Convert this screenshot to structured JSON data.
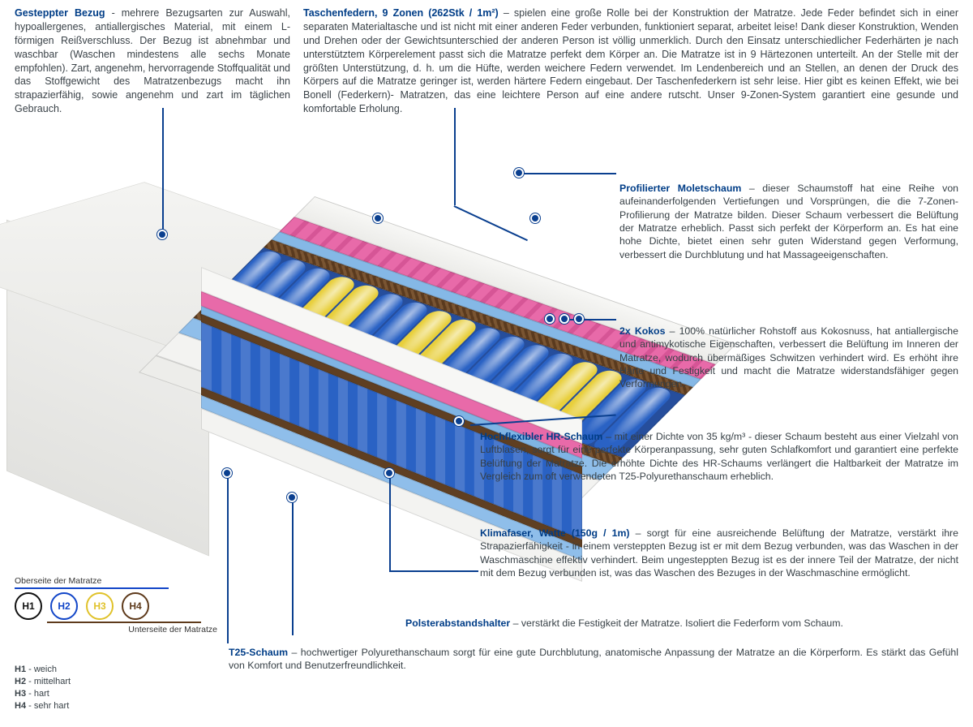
{
  "colors": {
    "heading": "#003d87",
    "text": "#3a4248",
    "dot": "#0a3f8f",
    "spring_blue": "#2a62c4",
    "spring_yellow": "#e8cf3c",
    "foam_pink": "#e86aa9",
    "foam_blue": "#8fbeea",
    "coco": "#5e3a1b",
    "cover": "#f3f3f1"
  },
  "top_left": {
    "title": "Gesteppter Bezug",
    "sep": " - ",
    "body": "mehrere Bezugsarten zur Auswahl, hypoallergenes, antiallergisches Material, mit einem L-förmigen Reißverschluss. Der Bezug ist abnehmbar und waschbar (Waschen mindestens alle sechs Monate empfohlen). Zart, angenehm, hervorragende Stoffqualität und das Stoffgewicht des Matratzenbezugs macht ihn strapazierfähig, sowie angenehm und zart im täglichen Gebrauch."
  },
  "top_right": {
    "title": "Taschenfedern, 9 Zonen (262Stk / 1m²)",
    "sep": " – ",
    "body": "spielen eine große Rolle bei der Konstruktion der Matratze. Jede Feder befindet sich in einer separaten Materialtasche und ist nicht mit einer anderen Feder verbunden, funktioniert separat, arbeitet leise! Dank dieser Konstruktion, Wenden und Drehen oder der Gewichtsunterschied der anderen Person ist völlig unmerklich. Durch den Einsatz unterschiedlicher Federhärten je nach unterstütztem Körperelement passt sich die Matratze perfekt dem Körper an. Die Matratze ist in 9 Härtezonen unterteilt. An der Stelle mit der größten Unterstützung, d. h. um die Hüfte, werden weichere Federn verwendet. Im Lendenbereich und an Stellen, an denen der Druck des Körpers auf die Matratze geringer ist, werden härtere Federn eingebaut. Der Taschenfederkern ist sehr leise. Hier gibt es keinen Effekt, wie bei Bonell (Federkern)- Matratzen, das eine leichtere Person auf eine andere rutscht. Unser 9-Zonen-System garantiert eine gesunde und komfortable Erholung."
  },
  "callouts": {
    "molet": {
      "title": "Profilierter Moletschaum",
      "sep": " – ",
      "body": "dieser Schaumstoff hat eine Reihe von aufeinanderfolgenden Vertiefungen und Vorsprüngen, die die 7-Zonen-Profilierung der Matratze bilden. Dieser Schaum verbessert die Belüftung der Matratze erheblich. Passt sich perfekt der Körperform an. Es hat eine hohe Dichte, bietet einen sehr guten Widerstand gegen Verformung, verbessert die Durchblutung und hat Massageeigenschaften."
    },
    "kokos": {
      "title": "2x Kokos",
      "sep": " – ",
      "body": "100% natürlicher Rohstoff aus Kokosnuss, hat antiallergische und antimykotische Eigenschaften, verbessert die Belüftung im Inneren der Matratze, wodurch übermäßiges Schwitzen verhindert wird. Es erhöht ihre Härte und Festigkeit und macht die Matratze widerstandsfähiger gegen Verformungen."
    },
    "hr": {
      "title": "Hochflexibler HR-Schaum",
      "sep": " – ",
      "body": "mit einer Dichte von 35 kg/m³ - dieser Schaum besteht aus einer Vielzahl von Luftblasen, sorgt für eine perfekte Körperanpassung, sehr guten Schlafkomfort und garantiert eine perfekte Belüftung der Matratze. Die erhöhte Dichte des HR-Schaums verlängert die Haltbarkeit der Matratze im Vergleich zum oft verwendeten T25-Polyurethanschaum erheblich."
    },
    "klima": {
      "title": "Klimafaser, Watte (150g / 1m)",
      "sep": " – ",
      "body": "sorgt für eine ausreichende Belüftung der Matratze, verstärkt ihre Strapazierfähigkeit - in einem versteppten Bezug ist er mit dem Bezug verbunden, was das Waschen in der Waschmaschine effektiv verhindert. Beim ungesteppten Bezug ist es der innere Teil der Matratze, der nicht mit dem Bezug verbunden ist, was das Waschen des Bezuges in der Waschmaschine ermöglicht."
    },
    "polster": {
      "title": "Polsterabstandshalter",
      "sep": " – ",
      "body": "verstärkt die Festigkeit der Matratze. Isoliert die Federform vom Schaum."
    },
    "t25": {
      "title": "T25-Schaum",
      "sep": " – ",
      "body": "hochwertiger Polyurethanschaum sorgt für eine gute Durchblutung, anatomische Anpassung der Matratze an die Körperform. Es stärkt das Gefühl von Komfort und Benutzerfreundlichkeit."
    }
  },
  "legend": {
    "top_label": "Oberseite der Matratze",
    "bottom_label": "Unterseite der Matratze",
    "items": [
      {
        "code": "H1",
        "label": "weich",
        "color": "#111111"
      },
      {
        "code": "H2",
        "label": "mittelhart",
        "color": "#1246c8"
      },
      {
        "code": "H3",
        "label": "hart",
        "color": "#e0c22a"
      },
      {
        "code": "H4",
        "label": "sehr hart",
        "color": "#5e3a1b"
      }
    ]
  },
  "diagram": {
    "type": "infographic",
    "layers_top_to_bottom": [
      {
        "name": "cover",
        "color": "#f3f3f1"
      },
      {
        "name": "profiled_molet_foam",
        "color": "#e86aa9"
      },
      {
        "name": "hr_foam_thin",
        "color": "#85b8e6"
      },
      {
        "name": "coco_top",
        "color": "#5e3a1b"
      },
      {
        "name": "pocket_springs_9zone",
        "colors": [
          "#2a62c4",
          "#e8cf3c"
        ],
        "zones": 9
      },
      {
        "name": "coco_bottom",
        "color": "#5e3a1b"
      },
      {
        "name": "hr_foam",
        "color": "#8fbeea"
      },
      {
        "name": "t25_foam",
        "color": "#f3f3f1"
      },
      {
        "name": "cover_bottom",
        "color": "#ededea"
      }
    ],
    "spring_pattern": [
      "b",
      "b",
      "b",
      "y",
      "y",
      "b",
      "b",
      "y",
      "y",
      "b",
      "b",
      "b",
      "b",
      "y",
      "y",
      "b",
      "b"
    ],
    "callout_dot_color": "#0a3f8f"
  }
}
